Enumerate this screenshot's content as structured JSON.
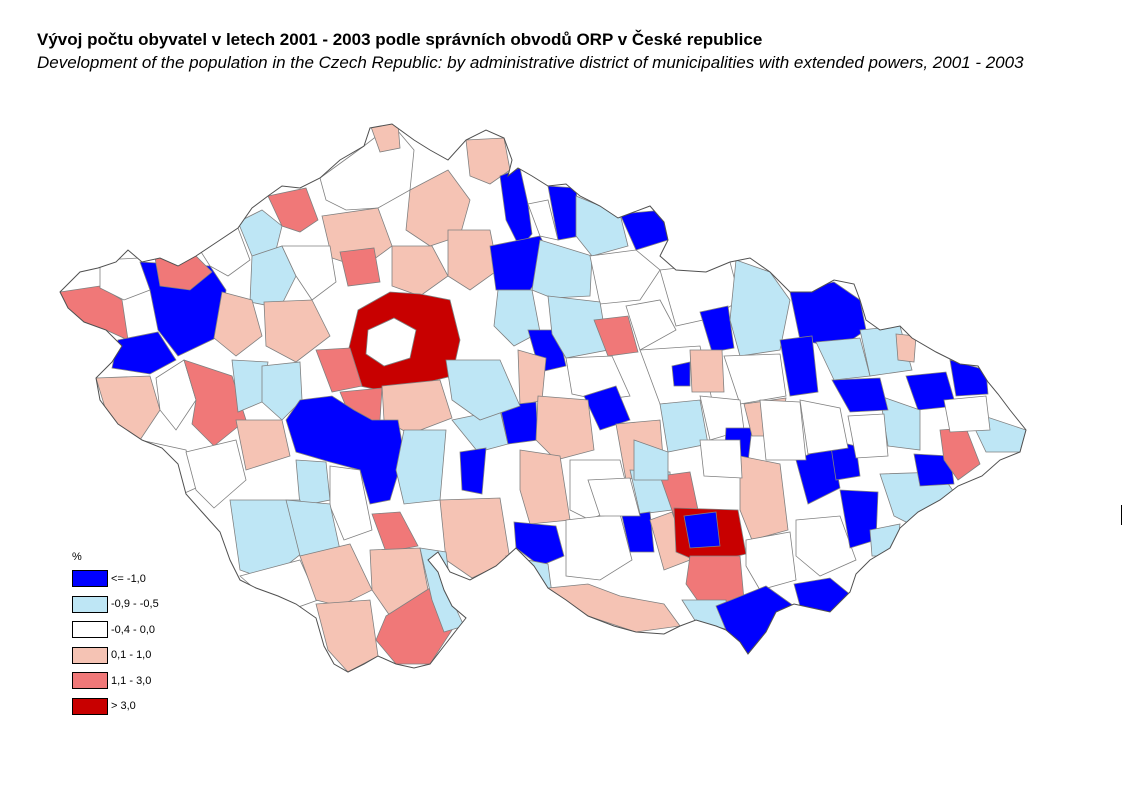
{
  "title": "Vývoj počtu obyvatel v letech 2001 - 2003 podle správních obvodů ORP v České republice",
  "subtitle": "Development of the population in the Czech Republic: by administrative district of municipalities with extended powers, 2001 - 2003",
  "legend": {
    "unit": "%",
    "classes": [
      {
        "label": "<= -1,0",
        "color": "#0000ff"
      },
      {
        "label": "-0,9 - -0,5",
        "color": "#bee6f5"
      },
      {
        "label": "-0,4 - 0,0",
        "color": "#ffffff"
      },
      {
        "label": "0,1 - 1,0",
        "color": "#f5c3b4"
      },
      {
        "label": "1,1 - 3,0",
        "color": "#f07878"
      },
      {
        "label": "> 3,0",
        "color": "#c80000"
      }
    ]
  },
  "colors": {
    "border": "#808080",
    "outline": "#505050"
  }
}
